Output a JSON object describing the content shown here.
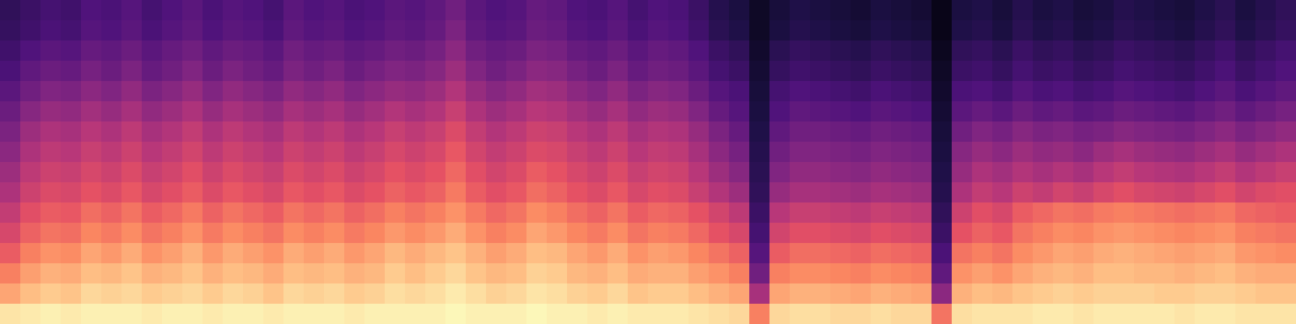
{
  "chart_data": {
    "type": "heatmap",
    "color": "magma",
    "tick_labels": false,
    "zlim": [
      25,
      100
    ],
    "cells": [
      [
        38,
        40,
        42,
        41,
        44,
        43,
        45,
        42,
        44,
        46,
        43,
        45,
        44,
        42,
        46,
        44,
        45,
        43,
        44,
        46,
        45,
        47,
        50,
        46,
        44,
        45,
        48,
        47,
        44,
        43,
        45,
        42,
        44,
        43,
        40,
        36,
        34,
        30,
        33,
        35,
        34,
        33,
        32,
        34,
        33,
        32,
        28,
        34,
        35,
        33,
        36,
        34,
        35,
        33,
        34,
        36,
        35,
        34,
        33,
        35,
        37,
        34,
        36,
        38
      ],
      [
        39,
        41,
        43,
        42,
        45,
        44,
        46,
        43,
        45,
        47,
        44,
        46,
        45,
        43,
        47,
        45,
        46,
        44,
        45,
        47,
        46,
        48,
        52,
        47,
        45,
        46,
        49,
        48,
        45,
        44,
        46,
        43,
        45,
        44,
        41,
        37,
        35,
        30,
        34,
        36,
        35,
        34,
        33,
        35,
        34,
        33,
        28,
        35,
        36,
        34,
        37,
        35,
        36,
        34,
        35,
        37,
        36,
        35,
        34,
        36,
        38,
        35,
        37,
        39
      ],
      [
        41,
        44,
        46,
        45,
        48,
        47,
        49,
        46,
        48,
        50,
        47,
        49,
        48,
        46,
        50,
        48,
        49,
        47,
        48,
        50,
        49,
        51,
        55,
        50,
        48,
        49,
        52,
        51,
        48,
        47,
        49,
        46,
        48,
        47,
        44,
        40,
        38,
        31,
        37,
        39,
        38,
        37,
        36,
        38,
        37,
        36,
        29,
        38,
        39,
        37,
        40,
        38,
        39,
        37,
        38,
        40,
        39,
        38,
        37,
        39,
        41,
        38,
        40,
        42
      ],
      [
        43,
        47,
        49,
        48,
        51,
        49,
        52,
        48,
        50,
        53,
        49,
        52,
        50,
        48,
        52,
        50,
        52,
        49,
        51,
        53,
        52,
        54,
        58,
        53,
        50,
        52,
        55,
        54,
        51,
        49,
        52,
        48,
        50,
        49,
        46,
        42,
        40,
        32,
        39,
        41,
        40,
        39,
        38,
        40,
        39,
        38,
        30,
        40,
        41,
        39,
        42,
        40,
        41,
        39,
        40,
        42,
        41,
        40,
        39,
        41,
        43,
        40,
        42,
        44
      ],
      [
        46,
        50,
        53,
        52,
        55,
        53,
        56,
        52,
        54,
        57,
        53,
        56,
        54,
        52,
        56,
        54,
        56,
        53,
        55,
        57,
        56,
        58,
        62,
        57,
        54,
        56,
        59,
        58,
        55,
        53,
        56,
        52,
        54,
        53,
        49,
        45,
        43,
        33,
        42,
        44,
        43,
        42,
        41,
        43,
        42,
        41,
        31,
        43,
        44,
        42,
        45,
        43,
        44,
        42,
        43,
        45,
        44,
        43,
        42,
        44,
        46,
        43,
        45,
        47
      ],
      [
        49,
        54,
        57,
        56,
        59,
        57,
        60,
        56,
        58,
        61,
        57,
        60,
        58,
        56,
        60,
        58,
        60,
        57,
        59,
        62,
        60,
        62,
        66,
        61,
        58,
        60,
        63,
        62,
        59,
        57,
        60,
        56,
        58,
        57,
        53,
        48,
        45,
        34,
        44,
        47,
        46,
        45,
        44,
        46,
        45,
        44,
        32,
        46,
        48,
        46,
        49,
        47,
        48,
        46,
        47,
        49,
        48,
        47,
        46,
        48,
        50,
        47,
        49,
        51
      ],
      [
        52,
        58,
        61,
        60,
        63,
        61,
        64,
        60,
        62,
        65,
        61,
        64,
        62,
        60,
        64,
        62,
        64,
        61,
        63,
        66,
        64,
        66,
        70,
        65,
        62,
        64,
        67,
        66,
        63,
        61,
        64,
        60,
        62,
        61,
        57,
        52,
        48,
        35,
        47,
        50,
        50,
        49,
        48,
        50,
        49,
        48,
        33,
        50,
        53,
        51,
        54,
        52,
        53,
        51,
        52,
        54,
        53,
        52,
        51,
        53,
        55,
        52,
        54,
        56
      ],
      [
        55,
        61,
        64,
        63,
        66,
        64,
        67,
        63,
        65,
        68,
        64,
        67,
        65,
        63,
        67,
        65,
        67,
        64,
        66,
        69,
        67,
        69,
        73,
        68,
        65,
        67,
        70,
        69,
        66,
        64,
        67,
        63,
        65,
        64,
        60,
        55,
        51,
        36,
        50,
        53,
        53,
        52,
        51,
        53,
        52,
        51,
        34,
        54,
        57,
        55,
        58,
        56,
        57,
        55,
        58,
        60,
        58,
        57,
        56,
        58,
        60,
        57,
        59,
        61
      ],
      [
        58,
        64,
        67,
        66,
        69,
        67,
        70,
        66,
        68,
        71,
        67,
        70,
        68,
        66,
        70,
        68,
        70,
        67,
        69,
        72,
        70,
        72,
        76,
        71,
        68,
        70,
        74,
        72,
        69,
        67,
        70,
        66,
        68,
        67,
        63,
        58,
        54,
        37,
        53,
        56,
        56,
        55,
        54,
        56,
        55,
        54,
        35,
        57,
        61,
        59,
        62,
        60,
        62,
        60,
        63,
        65,
        63,
        62,
        61,
        63,
        65,
        62,
        64,
        66
      ],
      [
        61,
        67,
        70,
        69,
        72,
        70,
        73,
        69,
        71,
        74,
        70,
        73,
        71,
        69,
        73,
        71,
        73,
        70,
        72,
        75,
        73,
        75,
        79,
        74,
        71,
        73,
        77,
        75,
        72,
        70,
        73,
        69,
        71,
        70,
        66,
        62,
        58,
        38,
        57,
        60,
        60,
        59,
        58,
        60,
        59,
        58,
        36,
        61,
        65,
        63,
        67,
        65,
        68,
        66,
        69,
        71,
        69,
        68,
        67,
        69,
        71,
        68,
        70,
        71
      ],
      [
        65,
        71,
        74,
        73,
        77,
        75,
        78,
        74,
        76,
        79,
        75,
        78,
        76,
        74,
        78,
        76,
        78,
        75,
        77,
        80,
        78,
        80,
        83,
        79,
        76,
        78,
        82,
        80,
        77,
        75,
        78,
        74,
        76,
        75,
        72,
        68,
        64,
        40,
        63,
        66,
        66,
        65,
        64,
        66,
        65,
        64,
        38,
        67,
        71,
        69,
        74,
        76,
        78,
        77,
        79,
        80,
        79,
        78,
        77,
        78,
        79,
        76,
        75,
        74
      ],
      [
        69,
        75,
        78,
        77,
        81,
        79,
        82,
        78,
        80,
        83,
        79,
        82,
        80,
        78,
        82,
        80,
        82,
        79,
        81,
        84,
        82,
        84,
        87,
        83,
        80,
        82,
        86,
        84,
        81,
        79,
        82,
        78,
        80,
        79,
        76,
        72,
        69,
        42,
        68,
        71,
        71,
        70,
        69,
        71,
        70,
        69,
        40,
        72,
        75,
        73,
        78,
        80,
        82,
        81,
        83,
        84,
        83,
        82,
        81,
        82,
        83,
        80,
        79,
        78
      ],
      [
        74,
        80,
        83,
        82,
        86,
        84,
        87,
        83,
        85,
        88,
        84,
        87,
        85,
        83,
        87,
        85,
        87,
        84,
        86,
        89,
        87,
        89,
        91,
        88,
        85,
        87,
        90,
        89,
        86,
        84,
        87,
        83,
        85,
        84,
        81,
        78,
        75,
        45,
        74,
        77,
        77,
        76,
        75,
        77,
        76,
        75,
        43,
        78,
        80,
        78,
        82,
        84,
        86,
        85,
        87,
        88,
        87,
        86,
        85,
        86,
        87,
        84,
        83,
        82
      ],
      [
        80,
        85,
        88,
        87,
        90,
        89,
        91,
        88,
        89,
        91,
        88,
        90,
        89,
        87,
        90,
        89,
        90,
        88,
        89,
        92,
        90,
        92,
        94,
        91,
        89,
        90,
        93,
        92,
        89,
        88,
        90,
        87,
        88,
        88,
        85,
        83,
        80,
        50,
        80,
        82,
        82,
        81,
        80,
        82,
        81,
        80,
        47,
        83,
        85,
        83,
        86,
        88,
        89,
        88,
        90,
        90,
        89,
        89,
        88,
        89,
        90,
        88,
        87,
        87
      ],
      [
        86,
        90,
        92,
        91,
        94,
        93,
        94,
        92,
        93,
        94,
        92,
        94,
        93,
        91,
        94,
        93,
        94,
        92,
        93,
        95,
        94,
        95,
        97,
        95,
        93,
        94,
        96,
        95,
        93,
        92,
        94,
        91,
        92,
        92,
        90,
        88,
        86,
        60,
        86,
        88,
        88,
        87,
        86,
        88,
        87,
        86,
        55,
        88,
        90,
        89,
        91,
        92,
        93,
        92,
        93,
        93,
        93,
        92,
        92,
        93,
        93,
        92,
        91,
        91
      ],
      [
        96,
        97,
        98,
        97,
        98,
        98,
        98,
        97,
        98,
        98,
        97,
        98,
        98,
        97,
        98,
        98,
        98,
        97,
        98,
        98,
        98,
        98,
        99,
        98,
        98,
        98,
        99,
        98,
        98,
        97,
        98,
        97,
        97,
        97,
        96,
        95,
        94,
        80,
        94,
        95,
        95,
        94,
        94,
        95,
        94,
        94,
        78,
        95,
        96,
        96,
        96,
        97,
        97,
        96,
        97,
        97,
        97,
        97,
        96,
        97,
        97,
        96,
        96,
        96
      ]
    ]
  }
}
